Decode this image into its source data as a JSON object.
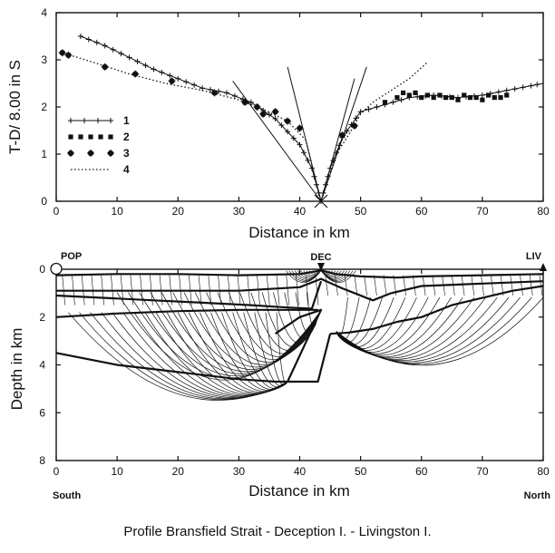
{
  "chart_data": [
    {
      "type": "scatter",
      "title": "",
      "xlabel": "Distance in km",
      "ylabel": "T-D/ 8.00 in S",
      "xlim": [
        0,
        80
      ],
      "ylim": [
        0,
        4
      ],
      "xticks": [
        "0",
        "10",
        "20",
        "30",
        "40",
        "50",
        "60",
        "70",
        "80"
      ],
      "yticks": [
        "0",
        "1",
        "2",
        "3",
        "4"
      ],
      "legend_position": "left",
      "series": [
        {
          "name": "1",
          "style": "plus-line",
          "x": [
            4,
            8,
            12,
            16,
            20,
            24,
            28,
            32,
            36,
            40,
            42,
            43.5
          ],
          "y": [
            3.5,
            3.3,
            3.05,
            2.8,
            2.6,
            2.4,
            2.3,
            2.1,
            1.75,
            1.2,
            0.7,
            0
          ]
        },
        {
          "name": "1",
          "style": "plus-line",
          "x": [
            43.5,
            45,
            47,
            50,
            54,
            58,
            62,
            66,
            70,
            74,
            78,
            80
          ],
          "y": [
            0,
            0.7,
            1.35,
            1.9,
            2.05,
            2.2,
            2.25,
            2.2,
            2.25,
            2.35,
            2.45,
            2.5
          ]
        },
        {
          "name": "2",
          "style": "square",
          "x": [
            54,
            56,
            57,
            58,
            59,
            60,
            61,
            62,
            63,
            64,
            65,
            66,
            67,
            68,
            69,
            70,
            71,
            72,
            73,
            74
          ],
          "y": [
            2.1,
            2.2,
            2.3,
            2.25,
            2.3,
            2.2,
            2.25,
            2.2,
            2.25,
            2.2,
            2.2,
            2.15,
            2.25,
            2.2,
            2.2,
            2.15,
            2.25,
            2.2,
            2.2,
            2.25
          ]
        },
        {
          "name": "3",
          "style": "star",
          "x": [
            1,
            2,
            8,
            13,
            19,
            26,
            31,
            33,
            34,
            36,
            38,
            40,
            47,
            49
          ],
          "y": [
            3.15,
            3.1,
            2.85,
            2.7,
            2.55,
            2.3,
            2.1,
            2.0,
            1.85,
            1.9,
            1.7,
            1.55,
            1.4,
            1.6
          ]
        },
        {
          "name": "4",
          "style": "dotted",
          "x": [
            1,
            6,
            12,
            18,
            24,
            30,
            34,
            38,
            41,
            43.5,
            46,
            48,
            50,
            52,
            55,
            58,
            61
          ],
          "y": [
            3.15,
            2.95,
            2.7,
            2.5,
            2.35,
            2.15,
            1.95,
            1.7,
            1.3,
            0,
            1.0,
            1.4,
            1.85,
            2.1,
            2.35,
            2.6,
            2.95
          ]
        },
        {
          "name": "",
          "style": "line",
          "x": [
            29,
            43.5
          ],
          "y": [
            2.55,
            0
          ]
        },
        {
          "name": "",
          "style": "line",
          "x": [
            38,
            43.5
          ],
          "y": [
            2.85,
            0
          ]
        },
        {
          "name": "",
          "style": "line",
          "x": [
            43.5,
            51
          ],
          "y": [
            0,
            2.85
          ]
        },
        {
          "name": "",
          "style": "line",
          "x": [
            43.5,
            49
          ],
          "y": [
            0,
            2.6
          ]
        }
      ],
      "annotations": [
        {
          "text": "",
          "marker": "X",
          "x": 43.5,
          "y": 0
        }
      ]
    },
    {
      "type": "line",
      "title": "",
      "xlabel": "Distance in km",
      "ylabel": "Depth in km",
      "xlim": [
        0,
        80
      ],
      "ylim": [
        8,
        0
      ],
      "xticks": [
        "0",
        "10",
        "20",
        "30",
        "40",
        "50",
        "60",
        "70",
        "80"
      ],
      "yticks": [
        "0",
        "2",
        "4",
        "6",
        "8"
      ],
      "annotations": [
        {
          "text": "POP",
          "x": 0,
          "y": 0
        },
        {
          "text": "DEC",
          "x": 43.5,
          "y": 0
        },
        {
          "text": "LIV",
          "x": 80,
          "y": 0
        },
        {
          "text": "South",
          "x": 0,
          "y": 8
        },
        {
          "text": "North",
          "x": 80,
          "y": 8
        }
      ],
      "layer_boundaries": [
        {
          "x": [
            0,
            10,
            20,
            30,
            40,
            43.5,
            46,
            50,
            56,
            60,
            70,
            80
          ],
          "y": [
            0.25,
            0.2,
            0.2,
            0.25,
            0.2,
            0.05,
            0.2,
            0.3,
            0.35,
            0.3,
            0.25,
            0.2
          ]
        },
        {
          "x": [
            0,
            10,
            20,
            30,
            40,
            43.5,
            47,
            52,
            55,
            60,
            70,
            80
          ],
          "y": [
            0.9,
            0.9,
            0.9,
            0.9,
            0.75,
            0.4,
            0.8,
            1.3,
            1.0,
            0.7,
            0.6,
            0.5
          ]
        },
        {
          "x": [
            0,
            8,
            16,
            24,
            32,
            38,
            42,
            43.5
          ],
          "y": [
            1.1,
            1.2,
            1.3,
            1.4,
            1.5,
            1.6,
            1.65,
            0.5
          ]
        },
        {
          "x": [
            0,
            10,
            20,
            30,
            40,
            43
          ],
          "y": [
            2.0,
            1.85,
            1.75,
            1.7,
            1.7,
            1.7
          ]
        },
        {
          "x": [
            45,
            48,
            52,
            56,
            60,
            65,
            70,
            75,
            80
          ],
          "y": [
            2.7,
            2.65,
            2.5,
            2.2,
            2.0,
            1.5,
            1.2,
            0.9,
            0.7
          ]
        },
        {
          "x": [
            0,
            10,
            20,
            30,
            36,
            38,
            43,
            45
          ],
          "y": [
            3.5,
            4.0,
            4.3,
            4.6,
            4.7,
            4.7,
            4.7,
            2.7
          ]
        },
        {
          "x": [
            38,
            43.5,
            40,
            36
          ],
          "y": [
            4.7,
            1.7,
            2.0,
            2.7
          ]
        }
      ],
      "ray_fans": [
        {
          "source_x": 38,
          "source_y": 4.7,
          "count": 20,
          "x_start": 2,
          "max_depth": 6.0
        },
        {
          "source_x": 43,
          "source_y": 1.9,
          "count": 18,
          "x_start": 10,
          "max_depth": 5.0
        },
        {
          "source_x": 46,
          "source_y": 2.6,
          "count": 18,
          "x_end": 80,
          "max_depth": 4.4
        }
      ]
    }
  ],
  "caption": "Profile Bransfield Strait - Deception I. - Livingston I."
}
